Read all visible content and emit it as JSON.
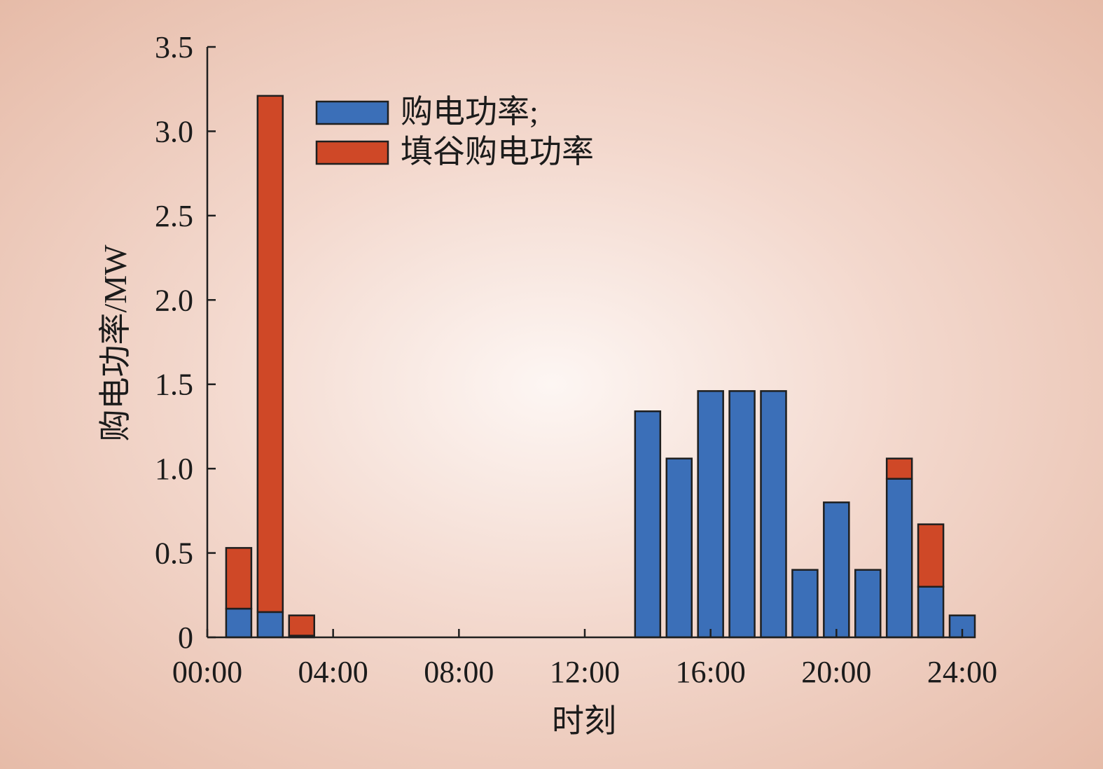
{
  "chart_data": {
    "type": "bar",
    "stacked": true,
    "xlabel": "时刻",
    "ylabel": "购电功率/MW",
    "ylim": [
      0,
      3.5
    ],
    "xlim": [
      0,
      24
    ],
    "x_ticks": [
      "00:00",
      "04:00",
      "08:00",
      "12:00",
      "16:00",
      "20:00",
      "24:00"
    ],
    "y_ticks": [
      "0",
      "0.5",
      "1.0",
      "1.5",
      "2.0",
      "2.5",
      "3.0",
      "3.5"
    ],
    "x_hours": [
      1,
      2,
      3,
      4,
      5,
      6,
      7,
      8,
      9,
      10,
      11,
      12,
      13,
      14,
      15,
      16,
      17,
      18,
      19,
      20,
      21,
      22,
      23,
      24
    ],
    "legend_position": "top-center",
    "series": [
      {
        "name": "购电功率;",
        "color": "#3b6fb8",
        "values": [
          0.17,
          0.15,
          0.01,
          0,
          0,
          0,
          0,
          0,
          0,
          0,
          0,
          0,
          0,
          1.34,
          1.06,
          1.46,
          1.46,
          1.46,
          0.4,
          0.8,
          0.4,
          0.94,
          0.3,
          0.13
        ]
      },
      {
        "name": "填谷购电功率",
        "color": "#cf4827",
        "values": [
          0.36,
          3.06,
          0.12,
          0,
          0,
          0,
          0,
          0,
          0,
          0,
          0,
          0,
          0,
          0,
          0,
          0,
          0,
          0,
          0,
          0,
          0,
          0.12,
          0.37,
          0
        ]
      }
    ]
  }
}
